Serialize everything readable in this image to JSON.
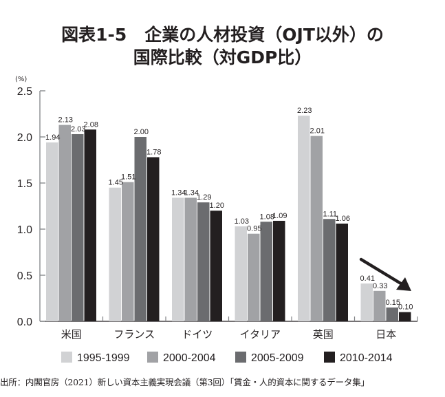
{
  "title": {
    "figure_number": "図表1-5",
    "line1": "企業の人材投資（OJT以外）の",
    "line2": "国際比較（対GDP比）"
  },
  "source": "出所：内閣官房（2021）新しい資本主義実現会議（第3回）「賃金・人的資本に関するデータ集」",
  "annotation": {
    "arrow": "downward-trend-arrow-over-japan"
  },
  "chart_data": {
    "type": "bar",
    "title": "図表1-5 企業の人材投資（OJT以外）の国際比較（対GDP比）",
    "xlabel": "",
    "ylabel": "(%)",
    "ylim": [
      0,
      2.5
    ],
    "yticks": [
      "0.0",
      "0.5",
      "1.0",
      "1.5",
      "2.0",
      "2.5"
    ],
    "ytick_values": [
      0,
      0.5,
      1.0,
      1.5,
      2.0,
      2.5
    ],
    "grid": false,
    "legend_position": "bottom",
    "categories": [
      "米国",
      "フランス",
      "ドイツ",
      "イタリア",
      "英国",
      "日本"
    ],
    "series": [
      {
        "name": "1995-1999",
        "color": "#d1d2d4",
        "values": [
          1.94,
          1.45,
          1.34,
          1.03,
          2.23,
          0.41
        ]
      },
      {
        "name": "2000-2004",
        "color": "#a1a2a5",
        "values": [
          2.13,
          1.51,
          1.34,
          0.95,
          2.01,
          0.33
        ]
      },
      {
        "name": "2005-2009",
        "color": "#6b6c6f",
        "values": [
          2.03,
          2.0,
          1.29,
          1.08,
          1.11,
          0.15
        ]
      },
      {
        "name": "2010-2014",
        "color": "#231f20",
        "values": [
          2.08,
          1.78,
          1.2,
          1.09,
          1.06,
          0.1
        ]
      }
    ],
    "data_labels": [
      [
        "1.94",
        "1.45",
        "1.34",
        "1.03",
        "2.23",
        "0.41"
      ],
      [
        "2.13",
        "1.51",
        "1.34",
        "0.95",
        "2.01",
        "0.33"
      ],
      [
        "2.03",
        "2.00",
        "1.29",
        "1.08",
        "1.11",
        "0.15"
      ],
      [
        "2.08",
        "1.78",
        "1.20",
        "1.09",
        "1.06",
        "0.10"
      ]
    ]
  }
}
